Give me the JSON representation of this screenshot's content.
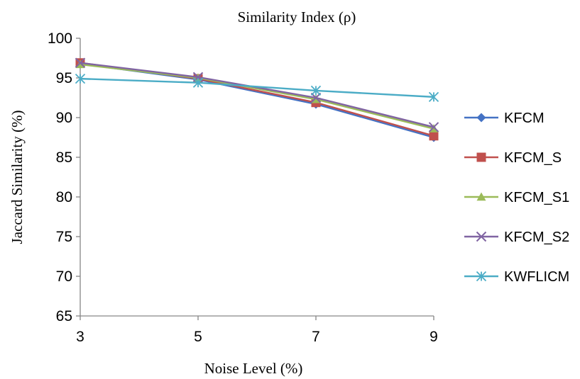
{
  "chart_data": {
    "type": "line",
    "title": "Similarity Index (ρ)",
    "xlabel": "Noise Level (%)",
    "ylabel": "Jaccard Similarity (%)",
    "x": [
      3,
      5,
      7,
      9
    ],
    "x_ticks": [
      "3",
      "5",
      "7",
      "9"
    ],
    "ylim": [
      65,
      100
    ],
    "y_ticks": [
      "65",
      "70",
      "75",
      "80",
      "85",
      "90",
      "95",
      "100"
    ],
    "grid": false,
    "legend_position": "right",
    "series": [
      {
        "name": "KFCM",
        "color": "#4472C4",
        "marker": "diamond",
        "values": [
          96.8,
          94.8,
          91.7,
          87.5
        ]
      },
      {
        "name": "KFCM_S",
        "color": "#C0504D",
        "marker": "square",
        "values": [
          96.9,
          94.9,
          91.9,
          87.7
        ]
      },
      {
        "name": "KFCM_S1",
        "color": "#9BBB59",
        "marker": "triangle",
        "values": [
          96.7,
          95.0,
          92.3,
          88.6
        ]
      },
      {
        "name": "KFCM_S2",
        "color": "#8064A2",
        "marker": "x",
        "values": [
          96.9,
          95.1,
          92.5,
          88.8
        ]
      },
      {
        "name": "KWFLICM",
        "color": "#4BACC6",
        "marker": "star",
        "values": [
          94.9,
          94.4,
          93.4,
          92.6
        ]
      }
    ]
  }
}
